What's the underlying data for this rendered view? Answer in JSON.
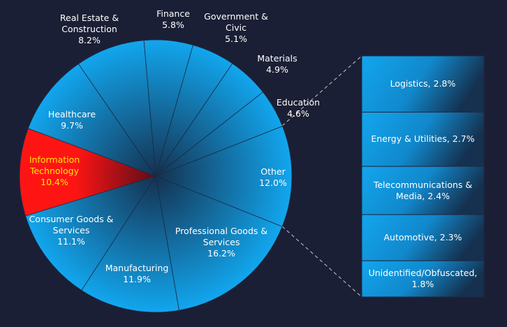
{
  "chart_data": [
    {
      "type": "pie",
      "categories": [
        "Finance",
        "Government & Civic",
        "Materials",
        "Education",
        "Other",
        "Professional Goods & Services",
        "Manufacturing",
        "Consumer Goods & Services",
        "Information Technology",
        "Healthcare",
        "Real Estate & Construction"
      ],
      "values": [
        5.8,
        5.1,
        4.9,
        4.6,
        12.0,
        16.2,
        11.9,
        11.1,
        10.4,
        9.7,
        8.2
      ],
      "value_labels": [
        "5.8%",
        "5.1%",
        "4.9%",
        "4.6%",
        "12.0%",
        "16.2%",
        "11.9%",
        "11.1%",
        "10.4%",
        "9.7%",
        "8.2%"
      ],
      "color": "#12a6ee",
      "highlight": {
        "index": 8,
        "color": "#ff1414"
      },
      "detail_of": 4
    },
    {
      "type": "bar",
      "categories": [
        "Logistics",
        "Energy & Utilities",
        "Telecommunications & Media",
        "Automotive",
        "Unidentified/Obfuscated"
      ],
      "values": [
        2.8,
        2.7,
        2.4,
        2.3,
        1.8
      ],
      "value_labels": [
        "2.8%",
        "2.7%",
        "2.4%",
        "2.3%",
        "1.8%"
      ],
      "color": "#12a6ee"
    }
  ]
}
